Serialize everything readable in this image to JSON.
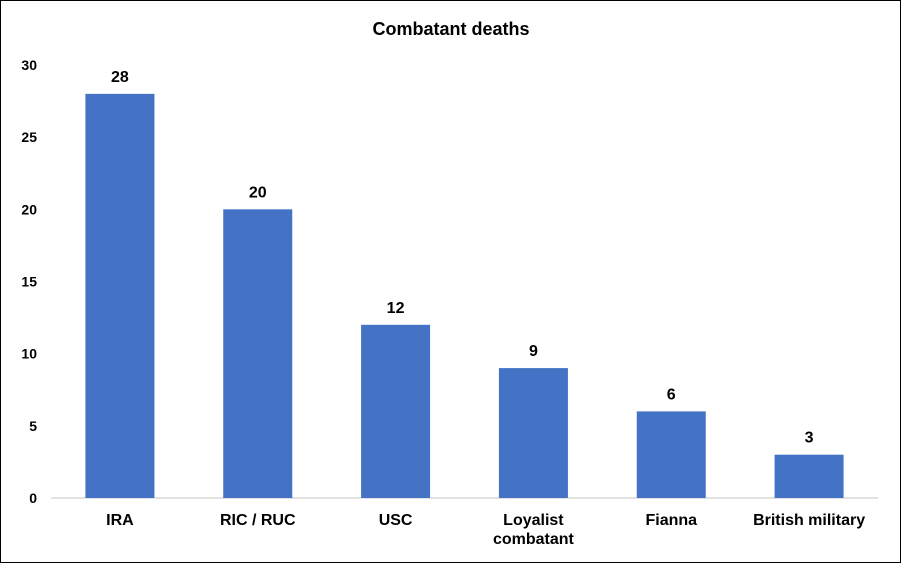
{
  "chart_data": {
    "type": "bar",
    "title": "Combatant deaths",
    "categories": [
      [
        "IRA"
      ],
      [
        "RIC / RUC"
      ],
      [
        "USC"
      ],
      [
        "Loyalist",
        "combatant"
      ],
      [
        "Fianna"
      ],
      [
        "British military"
      ]
    ],
    "values": [
      28,
      20,
      12,
      9,
      6,
      3
    ],
    "data_labels": [
      "28",
      "20",
      "12",
      "9",
      "6",
      "3"
    ],
    "ylim": [
      0,
      30
    ],
    "yticks": [
      0,
      5,
      10,
      15,
      20,
      25,
      30
    ],
    "grid": false,
    "legend": "none",
    "bar_color": "#4472C4",
    "axis_color": "#D9D9D9"
  }
}
